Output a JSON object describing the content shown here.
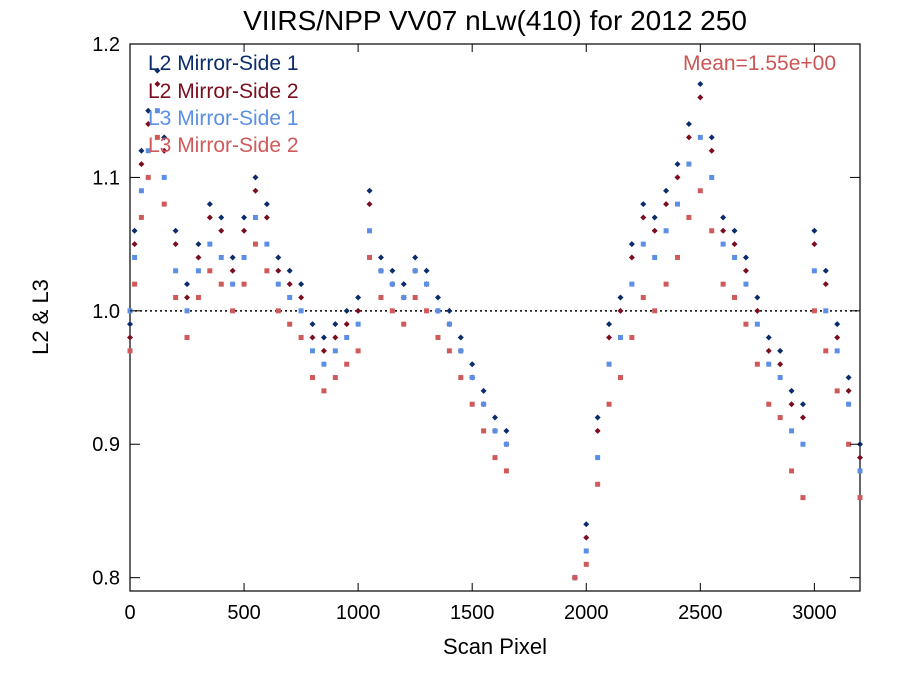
{
  "chart_data": {
    "type": "scatter",
    "title": "VIIRS/NPP VV07 nLw(410) for 2012 250",
    "xlabel": "Scan Pixel",
    "ylabel": "L2 & L3",
    "xlim": [
      0,
      3200
    ],
    "ylim": [
      0.79,
      1.2
    ],
    "xticks": [
      "0",
      "500",
      "1000",
      "1500",
      "2000",
      "2500",
      "3000"
    ],
    "yticks": [
      "0.8",
      "0.9",
      "1.0",
      "1.1",
      "1.2"
    ],
    "reference_line": 1.0,
    "annotation": "Mean=1.55e+00",
    "annotation_color": "#cc5555",
    "grid": false,
    "legend_position": "top-left",
    "series": [
      {
        "name": "L2 Mirror-Side 1",
        "color": "#0b2c6b",
        "values": [
          [
            0,
            0.99
          ],
          [
            20,
            1.06
          ],
          [
            50,
            1.12
          ],
          [
            80,
            1.15
          ],
          [
            120,
            1.18
          ],
          [
            150,
            1.13
          ],
          [
            200,
            1.06
          ],
          [
            250,
            1.02
          ],
          [
            300,
            1.05
          ],
          [
            350,
            1.08
          ],
          [
            400,
            1.07
          ],
          [
            450,
            1.04
          ],
          [
            500,
            1.07
          ],
          [
            550,
            1.1
          ],
          [
            600,
            1.08
          ],
          [
            650,
            1.04
          ],
          [
            700,
            1.03
          ],
          [
            750,
            1.02
          ],
          [
            800,
            0.99
          ],
          [
            850,
            0.98
          ],
          [
            900,
            0.99
          ],
          [
            950,
            1.0
          ],
          [
            1000,
            1.01
          ],
          [
            1050,
            1.09
          ],
          [
            1100,
            1.04
          ],
          [
            1150,
            1.03
          ],
          [
            1200,
            1.02
          ],
          [
            1250,
            1.04
          ],
          [
            1300,
            1.03
          ],
          [
            1350,
            1.01
          ],
          [
            1400,
            1.0
          ],
          [
            1450,
            0.98
          ],
          [
            1500,
            0.96
          ],
          [
            1550,
            0.94
          ],
          [
            1600,
            0.92
          ],
          [
            1650,
            0.91
          ],
          [
            1950,
            0.8
          ],
          [
            2000,
            0.84
          ],
          [
            2050,
            0.92
          ],
          [
            2100,
            0.99
          ],
          [
            2150,
            1.01
          ],
          [
            2200,
            1.05
          ],
          [
            2250,
            1.08
          ],
          [
            2300,
            1.07
          ],
          [
            2350,
            1.09
          ],
          [
            2400,
            1.11
          ],
          [
            2450,
            1.14
          ],
          [
            2500,
            1.17
          ],
          [
            2550,
            1.13
          ],
          [
            2600,
            1.07
          ],
          [
            2650,
            1.06
          ],
          [
            2700,
            1.04
          ],
          [
            2750,
            1.01
          ],
          [
            2800,
            0.98
          ],
          [
            2850,
            0.97
          ],
          [
            2900,
            0.94
          ],
          [
            2950,
            0.93
          ],
          [
            3000,
            1.06
          ],
          [
            3050,
            1.03
          ],
          [
            3100,
            0.99
          ],
          [
            3150,
            0.95
          ],
          [
            3200,
            0.9
          ]
        ]
      },
      {
        "name": "L2 Mirror-Side 2",
        "color": "#7a0e1e",
        "values": [
          [
            0,
            0.98
          ],
          [
            20,
            1.05
          ],
          [
            50,
            1.11
          ],
          [
            80,
            1.14
          ],
          [
            120,
            1.17
          ],
          [
            150,
            1.12
          ],
          [
            200,
            1.05
          ],
          [
            250,
            1.01
          ],
          [
            300,
            1.04
          ],
          [
            350,
            1.07
          ],
          [
            400,
            1.06
          ],
          [
            450,
            1.03
          ],
          [
            500,
            1.06
          ],
          [
            550,
            1.09
          ],
          [
            600,
            1.07
          ],
          [
            650,
            1.03
          ],
          [
            700,
            1.02
          ],
          [
            750,
            1.01
          ],
          [
            800,
            0.98
          ],
          [
            850,
            0.97
          ],
          [
            900,
            0.98
          ],
          [
            950,
            0.99
          ],
          [
            1000,
            1.0
          ],
          [
            1050,
            1.08
          ],
          [
            1100,
            1.03
          ],
          [
            1150,
            1.02
          ],
          [
            1200,
            1.01
          ],
          [
            1250,
            1.03
          ],
          [
            1300,
            1.02
          ],
          [
            1350,
            1.0
          ],
          [
            1400,
            0.99
          ],
          [
            1450,
            0.97
          ],
          [
            1500,
            0.95
          ],
          [
            1550,
            0.93
          ],
          [
            1600,
            0.91
          ],
          [
            1650,
            0.9
          ],
          [
            1950,
            0.8
          ],
          [
            2000,
            0.83
          ],
          [
            2050,
            0.91
          ],
          [
            2100,
            0.98
          ],
          [
            2150,
            1.0
          ],
          [
            2200,
            1.04
          ],
          [
            2250,
            1.07
          ],
          [
            2300,
            1.06
          ],
          [
            2350,
            1.08
          ],
          [
            2400,
            1.1
          ],
          [
            2450,
            1.13
          ],
          [
            2500,
            1.16
          ],
          [
            2550,
            1.12
          ],
          [
            2600,
            1.06
          ],
          [
            2650,
            1.05
          ],
          [
            2700,
            1.03
          ],
          [
            2750,
            1.0
          ],
          [
            2800,
            0.97
          ],
          [
            2850,
            0.96
          ],
          [
            2900,
            0.93
          ],
          [
            2950,
            0.92
          ],
          [
            3000,
            1.05
          ],
          [
            3050,
            1.02
          ],
          [
            3100,
            0.98
          ],
          [
            3150,
            0.94
          ],
          [
            3200,
            0.89
          ]
        ]
      },
      {
        "name": "L3 Mirror-Side 1",
        "color": "#5b8fe6",
        "values": [
          [
            0,
            1.0
          ],
          [
            20,
            1.04
          ],
          [
            50,
            1.09
          ],
          [
            80,
            1.12
          ],
          [
            120,
            1.15
          ],
          [
            150,
            1.1
          ],
          [
            200,
            1.03
          ],
          [
            250,
            1.0
          ],
          [
            300,
            1.03
          ],
          [
            350,
            1.05
          ],
          [
            400,
            1.04
          ],
          [
            450,
            1.02
          ],
          [
            500,
            1.04
          ],
          [
            550,
            1.07
          ],
          [
            600,
            1.05
          ],
          [
            650,
            1.02
          ],
          [
            700,
            1.01
          ],
          [
            750,
            1.0
          ],
          [
            800,
            0.97
          ],
          [
            850,
            0.96
          ],
          [
            900,
            0.97
          ],
          [
            950,
            0.98
          ],
          [
            1000,
            0.99
          ],
          [
            1050,
            1.06
          ],
          [
            1100,
            1.03
          ],
          [
            1150,
            1.02
          ],
          [
            1200,
            1.01
          ],
          [
            1250,
            1.03
          ],
          [
            1300,
            1.02
          ],
          [
            1350,
            1.0
          ],
          [
            1400,
            0.99
          ],
          [
            1450,
            0.97
          ],
          [
            1500,
            0.95
          ],
          [
            1550,
            0.93
          ],
          [
            1600,
            0.91
          ],
          [
            1650,
            0.9
          ],
          [
            1950,
            0.8
          ],
          [
            2000,
            0.82
          ],
          [
            2050,
            0.89
          ],
          [
            2100,
            0.96
          ],
          [
            2150,
            0.98
          ],
          [
            2200,
            1.02
          ],
          [
            2250,
            1.05
          ],
          [
            2300,
            1.04
          ],
          [
            2350,
            1.06
          ],
          [
            2400,
            1.08
          ],
          [
            2450,
            1.11
          ],
          [
            2500,
            1.13
          ],
          [
            2550,
            1.1
          ],
          [
            2600,
            1.05
          ],
          [
            2650,
            1.04
          ],
          [
            2700,
            1.02
          ],
          [
            2750,
            0.99
          ],
          [
            2800,
            0.96
          ],
          [
            2850,
            0.95
          ],
          [
            2900,
            0.91
          ],
          [
            2950,
            0.9
          ],
          [
            3000,
            1.03
          ],
          [
            3050,
            1.0
          ],
          [
            3100,
            0.97
          ],
          [
            3150,
            0.93
          ],
          [
            3200,
            0.88
          ]
        ]
      },
      {
        "name": "L3 Mirror-Side 2",
        "color": "#d05a5a",
        "values": [
          [
            0,
            0.97
          ],
          [
            20,
            1.02
          ],
          [
            50,
            1.07
          ],
          [
            80,
            1.1
          ],
          [
            120,
            1.13
          ],
          [
            150,
            1.08
          ],
          [
            200,
            1.01
          ],
          [
            250,
            0.98
          ],
          [
            300,
            1.01
          ],
          [
            350,
            1.03
          ],
          [
            400,
            1.02
          ],
          [
            450,
            1.0
          ],
          [
            500,
            1.02
          ],
          [
            550,
            1.05
          ],
          [
            600,
            1.03
          ],
          [
            650,
            1.0
          ],
          [
            700,
            0.99
          ],
          [
            750,
            0.98
          ],
          [
            800,
            0.95
          ],
          [
            850,
            0.94
          ],
          [
            900,
            0.95
          ],
          [
            950,
            0.96
          ],
          [
            1000,
            0.97
          ],
          [
            1050,
            1.04
          ],
          [
            1100,
            1.01
          ],
          [
            1150,
            1.0
          ],
          [
            1200,
            0.99
          ],
          [
            1250,
            1.01
          ],
          [
            1300,
            1.0
          ],
          [
            1350,
            0.98
          ],
          [
            1400,
            0.97
          ],
          [
            1450,
            0.95
          ],
          [
            1500,
            0.93
          ],
          [
            1550,
            0.91
          ],
          [
            1600,
            0.89
          ],
          [
            1650,
            0.88
          ],
          [
            1950,
            0.8
          ],
          [
            2000,
            0.81
          ],
          [
            2050,
            0.87
          ],
          [
            2100,
            0.93
          ],
          [
            2150,
            0.95
          ],
          [
            2200,
            0.98
          ],
          [
            2250,
            1.01
          ],
          [
            2300,
            1.0
          ],
          [
            2350,
            1.02
          ],
          [
            2400,
            1.04
          ],
          [
            2450,
            1.07
          ],
          [
            2500,
            1.09
          ],
          [
            2550,
            1.06
          ],
          [
            2600,
            1.02
          ],
          [
            2650,
            1.01
          ],
          [
            2700,
            0.99
          ],
          [
            2750,
            0.96
          ],
          [
            2800,
            0.93
          ],
          [
            2850,
            0.92
          ],
          [
            2900,
            0.88
          ],
          [
            2950,
            0.86
          ],
          [
            3000,
            1.0
          ],
          [
            3050,
            0.97
          ],
          [
            3100,
            0.94
          ],
          [
            3150,
            0.9
          ],
          [
            3200,
            0.86
          ]
        ]
      }
    ]
  }
}
